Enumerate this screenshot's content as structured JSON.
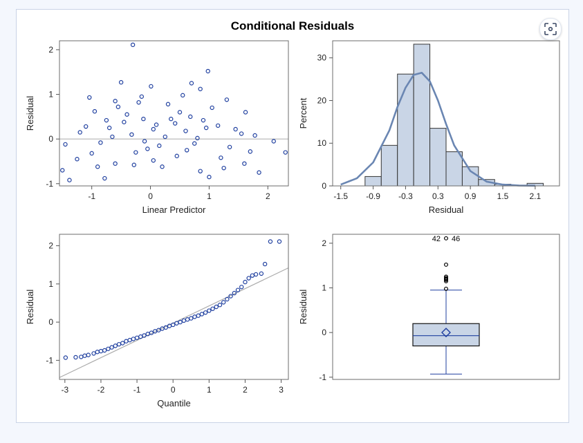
{
  "title": "Conditional Residuals",
  "focus_button": {
    "icon": "focus-icon"
  },
  "colors": {
    "marker": "#1f3f9f",
    "fill": "#c9d5e6",
    "curve": "#6a86b2",
    "ref": "#aaaaaa",
    "outlier": "#000000"
  },
  "chart_data": [
    {
      "type": "scatter",
      "title": "",
      "xlabel": "Linear Predictor",
      "ylabel": "Residual",
      "xlim": [
        -1.55,
        2.35
      ],
      "ylim": [
        -1.05,
        2.2
      ],
      "xticks": [
        "-1",
        "0",
        "1",
        "2"
      ],
      "yticks": [
        "-1",
        "0",
        "1",
        "2"
      ],
      "reference_line_y": 0,
      "points": [
        [
          -0.3,
          2.11
        ],
        [
          0.98,
          1.52
        ],
        [
          -0.5,
          1.27
        ],
        [
          0.7,
          1.25
        ],
        [
          0.01,
          1.18
        ],
        [
          0.55,
          0.98
        ],
        [
          -0.15,
          0.95
        ],
        [
          -1.04,
          0.93
        ],
        [
          -0.6,
          0.85
        ],
        [
          0.85,
          1.12
        ],
        [
          1.3,
          0.88
        ],
        [
          -0.2,
          0.82
        ],
        [
          0.3,
          0.78
        ],
        [
          -0.95,
          0.62
        ],
        [
          1.62,
          0.6
        ],
        [
          -0.12,
          0.45
        ],
        [
          0.9,
          0.42
        ],
        [
          -0.45,
          0.38
        ],
        [
          0.42,
          0.35
        ],
        [
          1.15,
          0.3
        ],
        [
          -0.7,
          0.25
        ],
        [
          0.05,
          0.22
        ],
        [
          0.6,
          0.18
        ],
        [
          -1.2,
          0.15
        ],
        [
          1.55,
          0.12
        ],
        [
          -0.32,
          0.1
        ],
        [
          0.25,
          0.05
        ],
        [
          1.78,
          0.08
        ],
        [
          -1.45,
          -0.12
        ],
        [
          -0.85,
          -0.08
        ],
        [
          0.75,
          -0.1
        ],
        [
          1.35,
          -0.18
        ],
        [
          -0.05,
          -0.22
        ],
        [
          2.3,
          -0.3
        ],
        [
          -1.5,
          -0.7
        ],
        [
          -1.38,
          -0.92
        ],
        [
          -0.78,
          -0.88
        ],
        [
          -0.6,
          -0.55
        ],
        [
          0.2,
          -0.62
        ],
        [
          0.85,
          -0.72
        ],
        [
          1.0,
          -0.85
        ],
        [
          1.85,
          -0.75
        ],
        [
          -1.25,
          -0.45
        ],
        [
          0.45,
          -0.38
        ],
        [
          -0.25,
          -0.3
        ],
        [
          1.2,
          -0.42
        ],
        [
          0.05,
          -0.48
        ],
        [
          -1.0,
          -0.32
        ],
        [
          0.62,
          -0.25
        ],
        [
          1.6,
          -0.55
        ],
        [
          -0.4,
          0.55
        ],
        [
          0.5,
          0.6
        ],
        [
          1.05,
          0.7
        ],
        [
          -0.65,
          0.05
        ],
        [
          0.15,
          -0.15
        ],
        [
          1.45,
          0.22
        ],
        [
          -0.9,
          -0.62
        ],
        [
          0.35,
          0.45
        ],
        [
          -0.1,
          -0.05
        ],
        [
          0.8,
          0.02
        ],
        [
          -0.55,
          0.72
        ],
        [
          1.25,
          -0.65
        ],
        [
          2.1,
          -0.05
        ],
        [
          -1.1,
          0.28
        ],
        [
          0.68,
          0.5
        ],
        [
          -0.28,
          -0.58
        ],
        [
          0.95,
          0.25
        ],
        [
          1.7,
          -0.28
        ],
        [
          -0.75,
          0.42
        ],
        [
          0.1,
          0.32
        ]
      ]
    },
    {
      "type": "bar",
      "title": "",
      "xlabel": "Residual",
      "ylabel": "Percent",
      "xlim": [
        -1.65,
        2.55
      ],
      "ylim": [
        0,
        34
      ],
      "xticks": [
        "-1.5",
        "-0.9",
        "-0.3",
        "0.3",
        "0.9",
        "1.5",
        "2.1"
      ],
      "yticks": [
        "0",
        "10",
        "20",
        "30"
      ],
      "bin_width": 0.3,
      "bin_midpoints": [
        -0.9,
        -0.6,
        -0.3,
        0.0,
        0.3,
        0.6,
        0.9,
        1.2,
        1.5,
        1.8,
        2.1
      ],
      "values": [
        2.2,
        9.5,
        26.2,
        33.2,
        13.5,
        8.0,
        4.5,
        1.5,
        0.4,
        0.0,
        0.6
      ],
      "density_curve": {
        "x": [
          -1.5,
          -1.2,
          -0.9,
          -0.6,
          -0.45,
          -0.3,
          -0.15,
          0.0,
          0.15,
          0.3,
          0.45,
          0.6,
          0.9,
          1.2,
          1.5,
          1.8,
          2.1
        ],
        "y": [
          0.3,
          1.8,
          5.5,
          13.0,
          18.5,
          23.0,
          26.0,
          26.5,
          24.5,
          20.0,
          14.5,
          9.5,
          3.5,
          1.0,
          0.3,
          0.1,
          0.05
        ]
      }
    },
    {
      "type": "scatter",
      "title": "",
      "xlabel": "Quantile",
      "ylabel": "Residual",
      "xlim": [
        -3.15,
        3.2
      ],
      "ylim": [
        -1.5,
        2.3
      ],
      "xticks": [
        "-3",
        "-2",
        "-1",
        "0",
        "1",
        "2",
        "3"
      ],
      "yticks": [
        "-1",
        "0",
        "1",
        "2"
      ],
      "reference_line": [
        [
          -3.15,
          -1.45
        ],
        [
          3.2,
          1.42
        ]
      ],
      "points": [
        [
          -2.98,
          -0.93
        ],
        [
          -2.7,
          -0.92
        ],
        [
          -2.55,
          -0.91
        ],
        [
          -2.45,
          -0.88
        ],
        [
          -2.35,
          -0.86
        ],
        [
          -2.2,
          -0.82
        ],
        [
          -2.1,
          -0.78
        ],
        [
          -2.0,
          -0.76
        ],
        [
          -1.9,
          -0.74
        ],
        [
          -1.8,
          -0.7
        ],
        [
          -1.7,
          -0.66
        ],
        [
          -1.6,
          -0.62
        ],
        [
          -1.5,
          -0.58
        ],
        [
          -1.4,
          -0.55
        ],
        [
          -1.3,
          -0.5
        ],
        [
          -1.2,
          -0.47
        ],
        [
          -1.1,
          -0.44
        ],
        [
          -1.0,
          -0.41
        ],
        [
          -0.9,
          -0.38
        ],
        [
          -0.8,
          -0.35
        ],
        [
          -0.7,
          -0.31
        ],
        [
          -0.6,
          -0.28
        ],
        [
          -0.5,
          -0.24
        ],
        [
          -0.4,
          -0.21
        ],
        [
          -0.3,
          -0.17
        ],
        [
          -0.2,
          -0.14
        ],
        [
          -0.1,
          -0.1
        ],
        [
          0.0,
          -0.07
        ],
        [
          0.1,
          -0.03
        ],
        [
          0.2,
          0.0
        ],
        [
          0.3,
          0.04
        ],
        [
          0.4,
          0.07
        ],
        [
          0.5,
          0.1
        ],
        [
          0.6,
          0.14
        ],
        [
          0.7,
          0.17
        ],
        [
          0.8,
          0.21
        ],
        [
          0.9,
          0.25
        ],
        [
          1.0,
          0.3
        ],
        [
          1.1,
          0.35
        ],
        [
          1.2,
          0.4
        ],
        [
          1.3,
          0.45
        ],
        [
          1.4,
          0.52
        ],
        [
          1.5,
          0.6
        ],
        [
          1.6,
          0.68
        ],
        [
          1.7,
          0.76
        ],
        [
          1.8,
          0.84
        ],
        [
          1.9,
          0.92
        ],
        [
          2.0,
          1.05
        ],
        [
          2.1,
          1.15
        ],
        [
          2.2,
          1.22
        ],
        [
          2.3,
          1.25
        ],
        [
          2.45,
          1.27
        ],
        [
          2.55,
          1.52
        ],
        [
          2.7,
          2.11
        ],
        [
          2.95,
          2.11
        ]
      ]
    },
    {
      "type": "box",
      "title": "",
      "xlabel": "",
      "ylabel": "Residual",
      "ylim": [
        -1.05,
        2.2
      ],
      "yticks": [
        "-1",
        "0",
        "1",
        "2"
      ],
      "whisker_low": -0.93,
      "q1": -0.3,
      "median": -0.07,
      "mean": 0.0,
      "q3": 0.2,
      "whisker_high": 0.95,
      "outliers": [
        0.98,
        1.15,
        1.18,
        1.2,
        1.22,
        1.25,
        1.52
      ],
      "labeled_outlier_value": 2.11,
      "labeled_outlier_ids": [
        "42",
        "46"
      ]
    }
  ]
}
